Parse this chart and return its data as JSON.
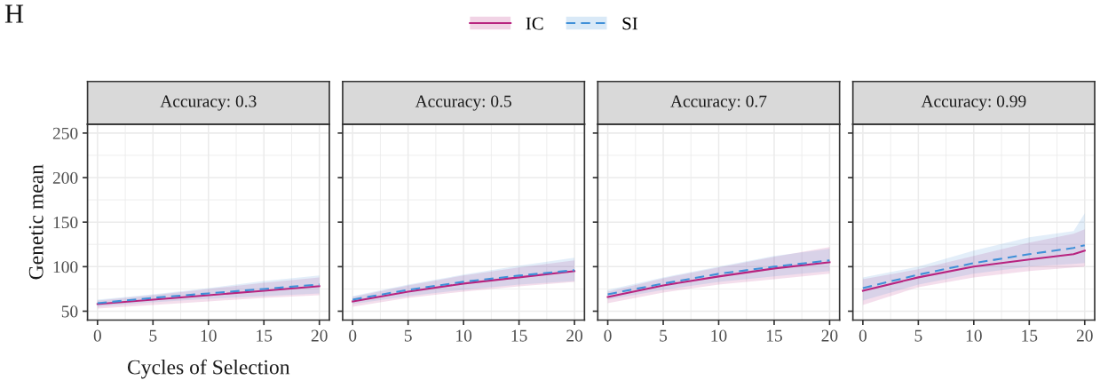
{
  "chart_data": [
    {
      "type": "line",
      "title": "Accuracy: 0.3",
      "xlabel": "Cycles of Selection",
      "ylabel": "Genetic mean",
      "annotations": [
        "H"
      ],
      "xlim": [
        -0.9,
        20.9
      ],
      "ylim": [
        40,
        260
      ],
      "xticks": [
        0,
        5,
        10,
        15,
        20
      ],
      "yticks": [
        50,
        100,
        150,
        200,
        250
      ],
      "grid": true,
      "legend": "top",
      "series": [
        {
          "name": "IC",
          "color": "#b8237f",
          "line_style": "solid",
          "x": [
            0,
            5,
            10,
            15,
            20
          ],
          "values": [
            58,
            63,
            68,
            73,
            78
          ],
          "lower": [
            53,
            57,
            61,
            65,
            68
          ],
          "upper": [
            62,
            68,
            75,
            82,
            88
          ]
        },
        {
          "name": "SI",
          "color": "#4090d8",
          "line_style": "dashed",
          "x": [
            0,
            5,
            10,
            15,
            20
          ],
          "values": [
            59,
            65,
            70,
            75,
            80
          ],
          "lower": [
            55,
            60,
            64,
            67,
            70
          ],
          "upper": [
            63,
            69,
            76,
            84,
            90
          ]
        }
      ]
    },
    {
      "type": "line",
      "title": "Accuracy: 0.5",
      "xlim": [
        -0.9,
        20.9
      ],
      "ylim": [
        40,
        260
      ],
      "xticks": [
        0,
        5,
        10,
        15,
        20
      ],
      "yticks": [
        50,
        100,
        150,
        200,
        250
      ],
      "grid": true,
      "tick_labels": "x",
      "series": [
        {
          "color": "#b8237f",
          "line_style": "solid",
          "x": [
            0,
            5,
            10,
            15,
            20
          ],
          "values": [
            61,
            72,
            81,
            88,
            95
          ],
          "lower": [
            55,
            65,
            72,
            78,
            83
          ],
          "upper": [
            66,
            79,
            90,
            99,
            107
          ]
        },
        {
          "color": "#4090d8",
          "line_style": "dashed",
          "x": [
            0,
            5,
            10,
            15,
            20
          ],
          "values": [
            63,
            74,
            83,
            90,
            96
          ],
          "lower": [
            58,
            67,
            74,
            80,
            84
          ],
          "upper": [
            67,
            80,
            91,
            101,
            110
          ]
        }
      ]
    },
    {
      "type": "line",
      "title": "Accuracy: 0.7",
      "xlim": [
        -0.9,
        20.9
      ],
      "ylim": [
        40,
        260
      ],
      "xticks": [
        0,
        5,
        10,
        15,
        20
      ],
      "yticks": [
        50,
        100,
        150,
        200,
        250
      ],
      "grid": true,
      "tick_labels": "x",
      "series": [
        {
          "color": "#b8237f",
          "line_style": "solid",
          "x": [
            0,
            5,
            10,
            15,
            20
          ],
          "values": [
            66,
            79,
            89,
            98,
            105
          ],
          "lower": [
            59,
            71,
            80,
            86,
            92
          ],
          "upper": [
            72,
            87,
            99,
            111,
            122
          ]
        },
        {
          "color": "#4090d8",
          "line_style": "dashed",
          "x": [
            0,
            5,
            10,
            15,
            20
          ],
          "values": [
            69,
            81,
            92,
            100,
            107
          ],
          "lower": [
            63,
            74,
            83,
            89,
            95
          ],
          "upper": [
            74,
            88,
            100,
            112,
            120
          ]
        }
      ]
    },
    {
      "type": "line",
      "title": "Accuracy: 0.99",
      "xlim": [
        -0.9,
        20.9
      ],
      "ylim": [
        40,
        260
      ],
      "xticks": [
        0,
        5,
        10,
        15,
        20
      ],
      "yticks": [
        50,
        100,
        150,
        200,
        250
      ],
      "grid": true,
      "tick_labels": "x",
      "series": [
        {
          "color": "#b8237f",
          "line_style": "solid",
          "x": [
            0,
            5,
            10,
            15,
            19,
            20
          ],
          "values": [
            73,
            88,
            100,
            108,
            114,
            118
          ],
          "lower": [
            57,
            77,
            88,
            95,
            99,
            100
          ],
          "upper": [
            86,
            97,
            112,
            127,
            137,
            142
          ]
        },
        {
          "color": "#4090d8",
          "line_style": "dashed",
          "x": [
            0,
            5,
            10,
            15,
            19,
            20
          ],
          "values": [
            76,
            91,
            104,
            114,
            121,
            124
          ],
          "lower": [
            62,
            80,
            92,
            100,
            103,
            104
          ],
          "upper": [
            88,
            100,
            118,
            133,
            140,
            160
          ]
        }
      ]
    }
  ]
}
